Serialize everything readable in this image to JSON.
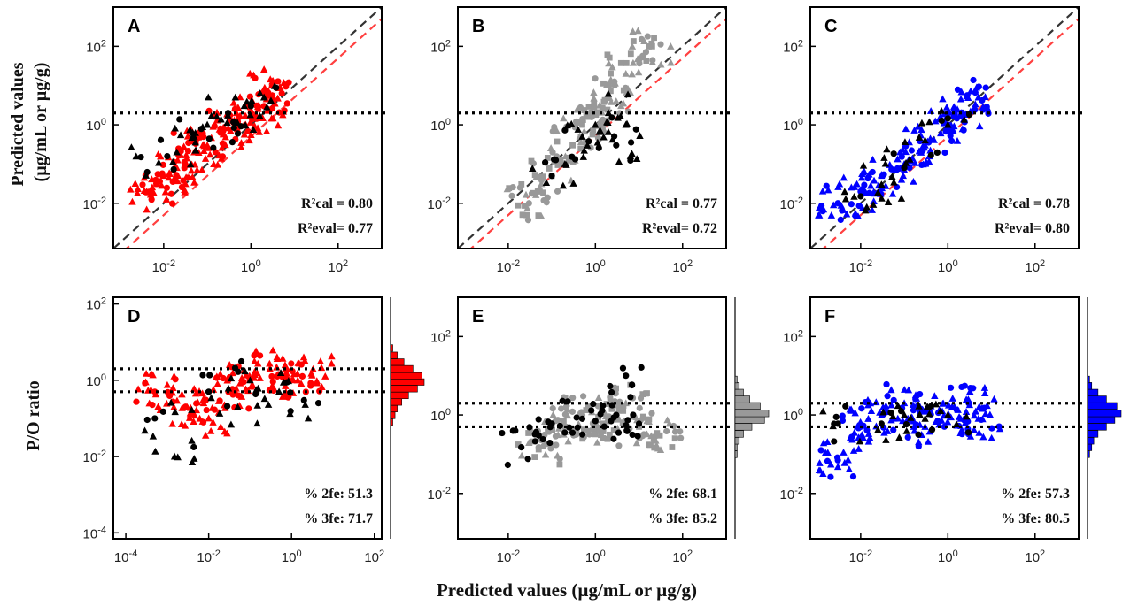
{
  "figure": {
    "y_label_top_line1": "Predicted values",
    "y_label_top_line2": "(µg/mL or µg/g)",
    "y_label_bottom": "P/O ratio",
    "x_label_bottom": "Predicted values (µg/mL or µg/g)"
  },
  "colors": {
    "red": "#ff0000",
    "grey": "#999999",
    "blue": "#0000ff",
    "black": "#000000",
    "identity_line": "#333333",
    "fold_lines": "#ff4040"
  },
  "chart_data": [
    {
      "panel": "A",
      "type": "scatter",
      "scale": "log-log",
      "xlim": [
        0.0007,
        1000
      ],
      "ylim": [
        0.0007,
        1000
      ],
      "x_ticks": [
        "10-2",
        "100",
        "102"
      ],
      "y_ticks": [
        "10-2",
        "100",
        "102"
      ],
      "reference_lines": [
        "y = x",
        "y = 2x",
        "y = x/2"
      ],
      "stats": [
        "R²cal = 0.80",
        "R²eval= 0.77"
      ],
      "series": [
        {
          "color": "red",
          "marker": "circle/triangle",
          "points": [
            [
              0.005,
              0.02
            ],
            [
              0.01,
              0.05
            ],
            [
              0.02,
              0.08
            ],
            [
              0.05,
              0.2
            ],
            [
              0.1,
              0.3
            ],
            [
              0.2,
              0.8
            ],
            [
              0.5,
              1.2
            ],
            [
              1,
              2
            ],
            [
              2,
              3
            ],
            [
              3,
              10
            ]
          ]
        },
        {
          "color": "black",
          "marker": "circle/triangle",
          "points": [
            [
              0.003,
              0.15
            ],
            [
              0.02,
              0.2
            ],
            [
              0.05,
              0.5
            ],
            [
              0.1,
              1
            ],
            [
              0.3,
              2
            ],
            [
              0.5,
              0.6
            ],
            [
              1,
              3
            ],
            [
              2,
              5
            ]
          ]
        }
      ]
    },
    {
      "panel": "B",
      "type": "scatter",
      "scale": "log-log",
      "xlim": [
        0.0007,
        1000
      ],
      "ylim": [
        0.0007,
        1000
      ],
      "x_ticks": [
        "10-2",
        "100",
        "102"
      ],
      "y_ticks": [
        "10-2",
        "100",
        "102"
      ],
      "reference_lines": [
        "y = x",
        "y = 2x",
        "y = x/2"
      ],
      "stats": [
        "R²cal = 0.77",
        "R²eval= 0.72"
      ],
      "series": [
        {
          "color": "grey",
          "marker": "circle/triangle/square",
          "points": [
            [
              0.03,
              0.01
            ],
            [
              0.1,
              0.05
            ],
            [
              0.3,
              0.3
            ],
            [
              0.5,
              1
            ],
            [
              1,
              2
            ],
            [
              2,
              5
            ],
            [
              5,
              20
            ],
            [
              20,
              100
            ]
          ]
        },
        {
          "color": "black",
          "marker": "circle/triangle",
          "points": [
            [
              0.1,
              0.05
            ],
            [
              0.2,
              0.1
            ],
            [
              0.5,
              0.5
            ],
            [
              1,
              1
            ],
            [
              2,
              2
            ],
            [
              3,
              0.3
            ],
            [
              5,
              1
            ]
          ]
        }
      ]
    },
    {
      "panel": "C",
      "type": "scatter",
      "scale": "log-log",
      "xlim": [
        0.0007,
        1000
      ],
      "ylim": [
        0.0007,
        1000
      ],
      "x_ticks": [
        "10-2",
        "100",
        "102"
      ],
      "y_ticks": [
        "10-2",
        "100",
        "102"
      ],
      "reference_lines": [
        "y = x",
        "y = 2x",
        "y = x/2"
      ],
      "stats": [
        "R²cal = 0.78",
        "R²eval= 0.80"
      ],
      "series": [
        {
          "color": "blue",
          "marker": "circle/triangle",
          "points": [
            [
              0.003,
              0.01
            ],
            [
              0.01,
              0.02
            ],
            [
              0.03,
              0.05
            ],
            [
              0.1,
              0.1
            ],
            [
              0.3,
              0.3
            ],
            [
              1,
              1
            ],
            [
              2,
              2
            ],
            [
              5,
              5
            ]
          ]
        },
        {
          "color": "black",
          "marker": "circle/triangle",
          "points": [
            [
              0.01,
              0.015
            ],
            [
              0.03,
              0.03
            ],
            [
              0.1,
              0.08
            ],
            [
              0.3,
              0.4
            ],
            [
              1,
              1
            ]
          ]
        }
      ]
    },
    {
      "panel": "D",
      "type": "scatter",
      "scale": "log-log",
      "xlim": [
        5e-05,
        150
      ],
      "ylim": [
        7e-05,
        150
      ],
      "x_ticks": [
        "10-4",
        "10-2",
        "100",
        "102"
      ],
      "y_ticks": [
        "10-4",
        "10-2",
        "100",
        "102"
      ],
      "reference_lines": [
        "y = 2",
        "y = 0.5"
      ],
      "stats": [
        "% 2fe: 51.3",
        "% 3fe: 71.7"
      ],
      "histogram": {
        "color": "red",
        "bin_centers": [
          0.08,
          0.12,
          0.18,
          0.27,
          0.4,
          0.6,
          0.9,
          1.3,
          2,
          3,
          4.5,
          7
        ],
        "counts": [
          1,
          2,
          3,
          5,
          8,
          12,
          15,
          14,
          10,
          6,
          3,
          1
        ]
      },
      "series": [
        {
          "color": "red",
          "marker": "circle/triangle",
          "points": [
            [
              0.0005,
              0.5
            ],
            [
              0.003,
              0.2
            ],
            [
              0.01,
              0.1
            ],
            [
              0.03,
              0.5
            ],
            [
              0.1,
              1
            ],
            [
              0.3,
              2
            ],
            [
              1,
              1
            ],
            [
              3,
              1.5
            ]
          ]
        },
        {
          "color": "black",
          "marker": "circle/triangle",
          "points": [
            [
              0.0005,
              0.1
            ],
            [
              0.0015,
              0.01
            ],
            [
              0.01,
              0.5
            ],
            [
              0.05,
              0.2
            ],
            [
              0.1,
              1
            ],
            [
              0.5,
              0.5
            ],
            [
              2,
              0.3
            ]
          ]
        }
      ]
    },
    {
      "panel": "E",
      "type": "scatter",
      "scale": "log-log",
      "xlim": [
        0.0007,
        1000
      ],
      "ylim": [
        0.0007,
        1000
      ],
      "x_ticks": [
        "10-2",
        "100",
        "102"
      ],
      "y_ticks": [
        "10-2",
        "100",
        "102"
      ],
      "reference_lines": [
        "y = 2",
        "y = 0.5"
      ],
      "stats": [
        "% 2fe: 68.1",
        "% 3fe: 85.2"
      ],
      "histogram": {
        "color": "grey",
        "bin_centers": [
          0.1,
          0.15,
          0.22,
          0.33,
          0.5,
          0.75,
          1.1,
          1.7,
          2.5,
          3.7,
          5.5,
          8
        ],
        "counts": [
          1,
          1,
          2,
          4,
          8,
          14,
          16,
          12,
          7,
          4,
          2,
          1
        ]
      },
      "series": [
        {
          "color": "grey",
          "marker": "circle/triangle/square",
          "points": [
            [
              0.05,
              0.15
            ],
            [
              0.2,
              0.5
            ],
            [
              0.5,
              1
            ],
            [
              1,
              0.6
            ],
            [
              2,
              0.8
            ],
            [
              5,
              2
            ],
            [
              10,
              0.5
            ],
            [
              30,
              0.3
            ]
          ]
        },
        {
          "color": "black",
          "marker": "circle/square",
          "points": [
            [
              0.02,
              0.15
            ],
            [
              0.05,
              0.3
            ],
            [
              0.1,
              0.6
            ],
            [
              0.5,
              0.8
            ],
            [
              1,
              0.7
            ],
            [
              3,
              1
            ],
            [
              5,
              10
            ],
            [
              10,
              0.6
            ]
          ]
        }
      ]
    },
    {
      "panel": "F",
      "type": "scatter",
      "scale": "log-log",
      "xlim": [
        0.0007,
        1000
      ],
      "ylim": [
        0.0007,
        1000
      ],
      "x_ticks": [
        "10-2",
        "100",
        "102"
      ],
      "y_ticks": [
        "10-2",
        "100",
        "102"
      ],
      "reference_lines": [
        "y = 2",
        "y = 0.5"
      ],
      "stats": [
        "% 2fe: 57.3",
        "% 3fe: 80.5"
      ],
      "histogram": {
        "color": "blue",
        "bin_centers": [
          0.1,
          0.15,
          0.22,
          0.33,
          0.5,
          0.75,
          1.1,
          1.7,
          2.5,
          3.7,
          5.5,
          8
        ],
        "counts": [
          1,
          2,
          3,
          5,
          9,
          13,
          16,
          14,
          9,
          5,
          2,
          1
        ]
      },
      "series": [
        {
          "color": "blue",
          "marker": "circle/triangle",
          "points": [
            [
              0.003,
              0.07
            ],
            [
              0.01,
              0.5
            ],
            [
              0.03,
              1
            ],
            [
              0.1,
              2
            ],
            [
              0.3,
              0.5
            ],
            [
              1,
              1
            ],
            [
              3,
              2
            ],
            [
              5,
              0.8
            ]
          ]
        },
        {
          "color": "black",
          "marker": "circle/triangle",
          "points": [
            [
              0.003,
              0.6
            ],
            [
              0.03,
              0.6
            ],
            [
              0.1,
              1
            ],
            [
              0.3,
              0.8
            ],
            [
              1,
              1
            ]
          ]
        }
      ]
    }
  ]
}
